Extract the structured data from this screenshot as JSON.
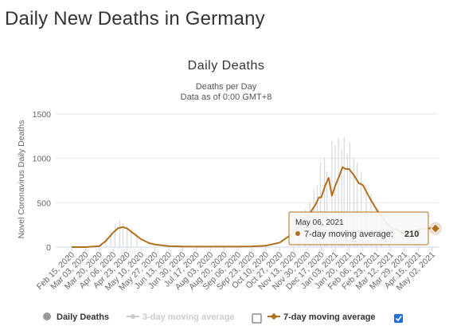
{
  "page": {
    "title": "Daily New Deaths in Germany"
  },
  "chart_data": {
    "type": "line",
    "title": "Daily Deaths",
    "subtitle_line1": "Deaths per Day",
    "subtitle_line2": "Data as of 0:00 GMT+8",
    "ylabel": "Novel Coronavirus Daily Deaths",
    "xlabel": "",
    "ylim": [
      0,
      1500
    ],
    "yticks": [
      0,
      500,
      1000,
      1500
    ],
    "x_tick_labels": [
      "Feb 15, 2020",
      "Mar 03, 2020",
      "Mar 20, 2020",
      "Apr 06, 2020",
      "Apr 23, 2020",
      "May 10, 2020",
      "May 27, 2020",
      "Jun 13, 2020",
      "Jun 30, 2020",
      "Jul 17, 2020",
      "Aug 03, 2020",
      "Aug 20, 2020",
      "Sep 06, 2020",
      "Sep 23, 2020",
      "Oct 10, 2020",
      "Oct 27, 2020",
      "Nov 13, 2020",
      "Nov 30, 2020",
      "Dec 17, 2020",
      "Jan 03, 2021",
      "Jan 20, 2021",
      "Feb 06, 2021",
      "Feb 23, 2021",
      "Mar 12, 2021",
      "Mar 29, 2021",
      "Apr 15, 2021",
      "May 02, 2021"
    ],
    "grid": true,
    "legend_placement": "bottom",
    "colors": {
      "daily_bars": "#d9d9d9",
      "moving_avg_7": "#b0701e",
      "moving_avg_3": "#cccccc",
      "legend_dot_daily": "#999999"
    },
    "series": [
      {
        "name": "7-day moving average",
        "visible": true,
        "points": [
          [
            "Feb 15, 2020",
            0
          ],
          [
            "Mar 03, 2020",
            0
          ],
          [
            "Mar 20, 2020",
            12
          ],
          [
            "Mar 28, 2020",
            70
          ],
          [
            "Apr 06, 2020",
            165
          ],
          [
            "Apr 12, 2020",
            215
          ],
          [
            "Apr 18, 2020",
            225
          ],
          [
            "Apr 23, 2020",
            210
          ],
          [
            "Apr 30, 2020",
            160
          ],
          [
            "May 10, 2020",
            90
          ],
          [
            "May 20, 2020",
            45
          ],
          [
            "May 27, 2020",
            30
          ],
          [
            "Jun 13, 2020",
            12
          ],
          [
            "Jun 30, 2020",
            6
          ],
          [
            "Jul 17, 2020",
            5
          ],
          [
            "Aug 03, 2020",
            5
          ],
          [
            "Aug 20, 2020",
            5
          ],
          [
            "Sep 06, 2020",
            5
          ],
          [
            "Sep 23, 2020",
            8
          ],
          [
            "Oct 10, 2020",
            15
          ],
          [
            "Oct 27, 2020",
            50
          ],
          [
            "Nov 13, 2020",
            160
          ],
          [
            "Nov 30, 2020",
            340
          ],
          [
            "Dec 10, 2020",
            480
          ],
          [
            "Dec 14, 2020",
            560
          ],
          [
            "Dec 17, 2020",
            560
          ],
          [
            "Dec 22, 2020",
            700
          ],
          [
            "Dec 26, 2020",
            780
          ],
          [
            "Dec 30, 2020",
            580
          ],
          [
            "Jan 03, 2021",
            690
          ],
          [
            "Jan 08, 2021",
            800
          ],
          [
            "Jan 12, 2021",
            900
          ],
          [
            "Jan 16, 2021",
            880
          ],
          [
            "Jan 20, 2021",
            880
          ],
          [
            "Jan 26, 2021",
            810
          ],
          [
            "Feb 01, 2021",
            720
          ],
          [
            "Feb 06, 2021",
            700
          ],
          [
            "Feb 14, 2021",
            560
          ],
          [
            "Feb 23, 2021",
            420
          ],
          [
            "Mar 12, 2021",
            220
          ],
          [
            "Mar 29, 2021",
            160
          ],
          [
            "Apr 15, 2021",
            200
          ],
          [
            "May 02, 2021",
            215
          ],
          [
            "May 06, 2021",
            210
          ]
        ]
      },
      {
        "name": "Daily Deaths",
        "visible": true,
        "bars": [
          [
            "Mar 28, 2020",
            120
          ],
          [
            "Apr 03, 2020",
            180
          ],
          [
            "Apr 08, 2020",
            260
          ],
          [
            "Apr 14, 2020",
            300
          ],
          [
            "Apr 18, 2020",
            270
          ],
          [
            "Apr 23, 2020",
            240
          ],
          [
            "Apr 28, 2020",
            200
          ],
          [
            "May 05, 2020",
            150
          ],
          [
            "Nov 20, 2020",
            300
          ],
          [
            "Nov 27, 2020",
            420
          ],
          [
            "Dec 03, 2020",
            500
          ],
          [
            "Dec 08, 2020",
            650
          ],
          [
            "Dec 12, 2020",
            700
          ],
          [
            "Dec 16, 2020",
            950
          ],
          [
            "Dec 21, 2020",
            1000
          ],
          [
            "Dec 24, 2020",
            850
          ],
          [
            "Dec 30, 2020",
            1200
          ],
          [
            "Jan 03, 2021",
            1150
          ],
          [
            "Jan 07, 2021",
            1230
          ],
          [
            "Jan 11, 2021",
            1100
          ],
          [
            "Jan 14, 2021",
            1240
          ],
          [
            "Jan 18, 2021",
            1050
          ],
          [
            "Jan 21, 2021",
            1180
          ],
          [
            "Jan 26, 2021",
            1000
          ],
          [
            "Jan 30, 2021",
            950
          ],
          [
            "Feb 04, 2021",
            850
          ],
          [
            "Feb 10, 2021",
            700
          ],
          [
            "Feb 16, 2021",
            600
          ],
          [
            "Feb 22, 2021",
            450
          ],
          [
            "Mar 01, 2021",
            350
          ],
          [
            "Mar 10, 2021",
            280
          ]
        ]
      }
    ],
    "tooltip": {
      "date": "May 06, 2021",
      "label": "7-day moving average:",
      "value": "210"
    },
    "legend": [
      {
        "label": "Daily Deaths",
        "active": true
      },
      {
        "label": "3-day moving average",
        "active": false,
        "checked": false
      },
      {
        "label": "7-day moving average",
        "active": true,
        "checked": true
      }
    ]
  }
}
